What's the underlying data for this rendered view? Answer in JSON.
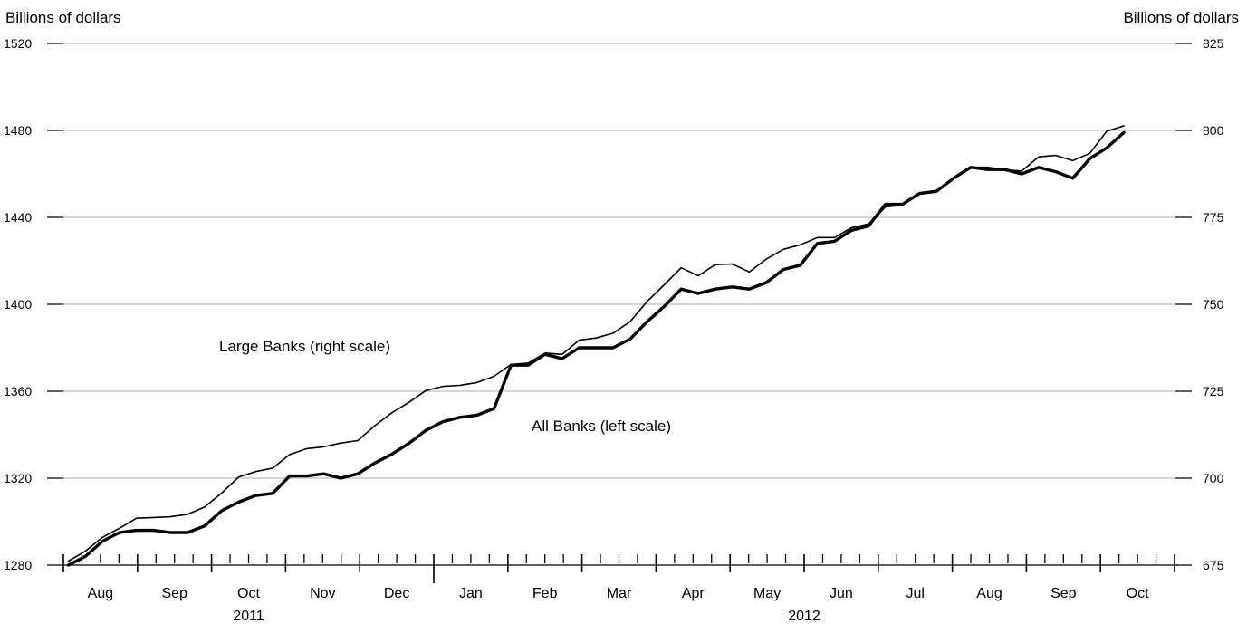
{
  "chart_data": {
    "type": "line",
    "left_axis": {
      "unit_label": "Billions of dollars",
      "ylim": [
        1280,
        1520
      ],
      "ticks": [
        "1280",
        "1320",
        "1360",
        "1400",
        "1440",
        "1480",
        "1520"
      ]
    },
    "right_axis": {
      "unit_label": "Billions of dollars",
      "ylim": [
        675,
        825
      ],
      "ticks": [
        "675",
        "700",
        "725",
        "750",
        "775",
        "800",
        "825"
      ]
    },
    "grid": true,
    "x_axis": {
      "months": [
        "Aug",
        "Sep",
        "Oct",
        "Nov",
        "Dec",
        "Jan",
        "Feb",
        "Mar",
        "Apr",
        "May",
        "Jun",
        "Jul",
        "Aug",
        "Sep",
        "Oct"
      ],
      "years": [
        "2011",
        "2012"
      ],
      "ticks_per_month": 4
    },
    "annotations": {
      "large_banks": "Large Banks (right scale)",
      "all_banks": "All Banks (left scale)"
    },
    "series": [
      {
        "name": "All Banks (left scale)",
        "axis": "left",
        "values": [
          1280,
          1284,
          1291,
          1295,
          1296,
          1296,
          1295,
          1295,
          1298,
          1305,
          1309,
          1312,
          1313,
          1321,
          1321,
          1322,
          1320,
          1322,
          1327,
          1331,
          1336,
          1342,
          1346,
          1348,
          1349,
          1352,
          1372,
          1372,
          1377,
          1375,
          1380,
          1380,
          1380,
          1384,
          1392,
          1399,
          1407,
          1405,
          1407,
          1408,
          1407,
          1410,
          1416,
          1418,
          1428,
          1429,
          1434,
          1436,
          1446,
          1446,
          1451,
          1452,
          1458,
          1463,
          1462,
          1462,
          1460,
          1463,
          1461,
          1458,
          1467,
          1472,
          1479
        ]
      },
      {
        "name": "Large Banks (right scale)",
        "axis": "right",
        "values": [
          676.2,
          679,
          683,
          685.6,
          688.5,
          688.7,
          688.9,
          689.6,
          691.7,
          695.7,
          700.3,
          701.9,
          702.9,
          706.8,
          708.5,
          709,
          710.1,
          710.8,
          715.1,
          718.8,
          721.8,
          725.2,
          726.4,
          726.7,
          727.5,
          729.3,
          732.7,
          733.1,
          736,
          735.6,
          739.7,
          740.3,
          741.7,
          745,
          750.8,
          755.6,
          760.5,
          758.2,
          761.4,
          761.6,
          759.3,
          763,
          765.8,
          767.1,
          769.2,
          769.2,
          772,
          773.1,
          778,
          778.5,
          781.9,
          782.4,
          786.4,
          789.4,
          789.4,
          788.7,
          788.3,
          792.4,
          792.8,
          791.3,
          793.4,
          799.8,
          801.3
        ]
      }
    ]
  }
}
